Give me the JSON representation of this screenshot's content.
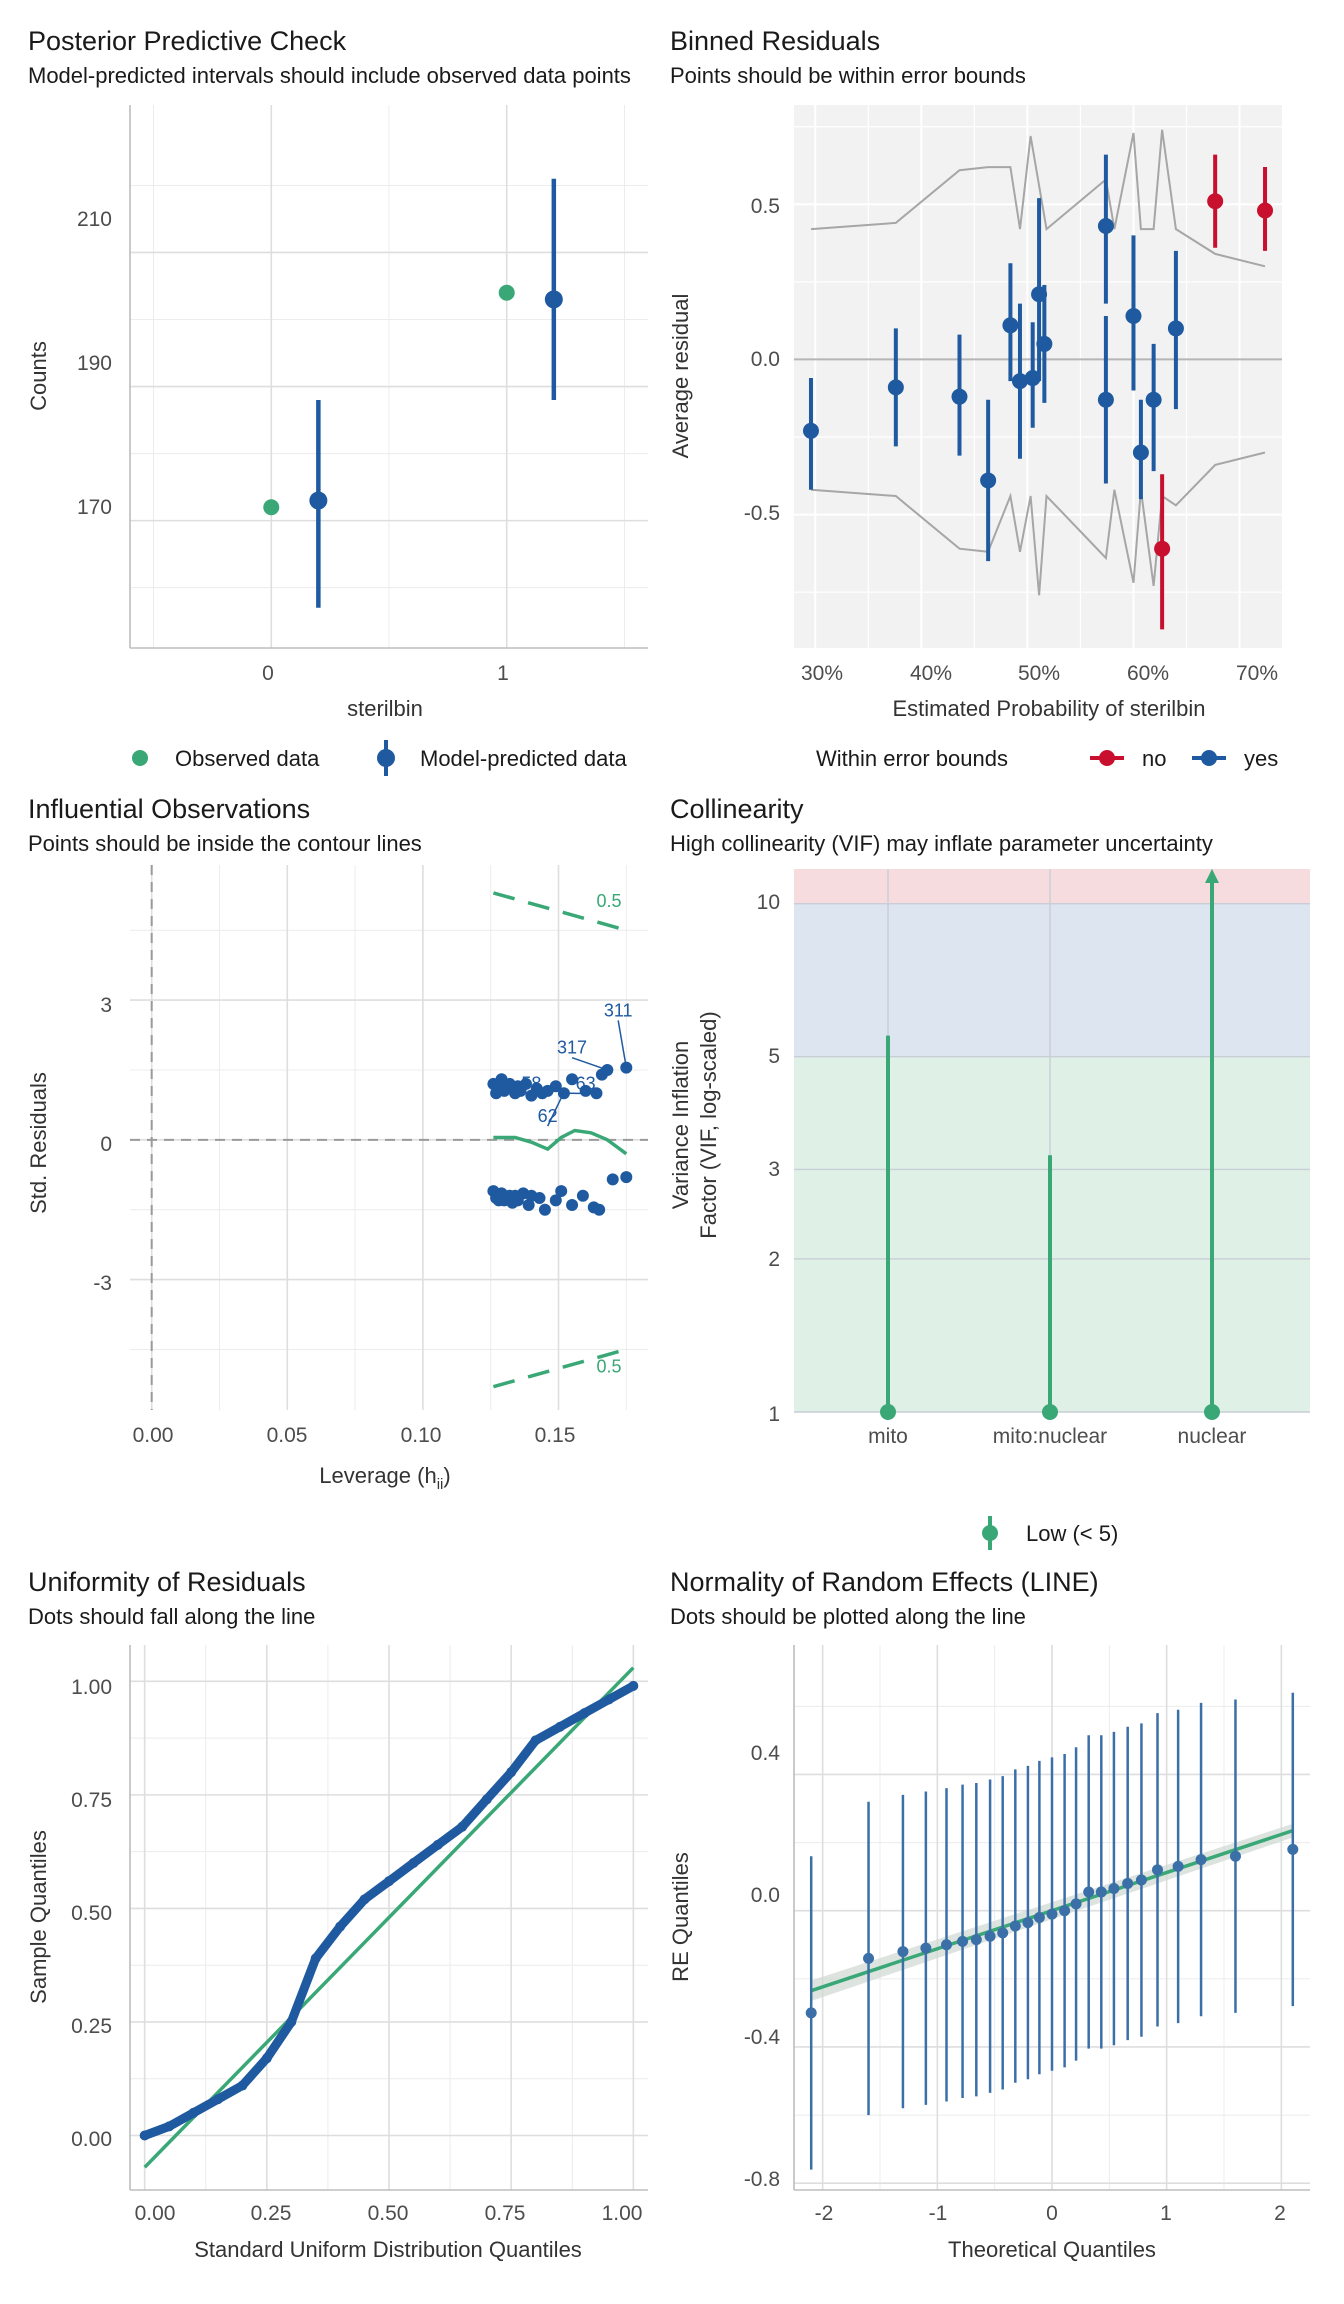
{
  "colors": {
    "green": "#3aa876",
    "blue": "#1f5aa0",
    "red": "#c8102e",
    "grey_band": "#f2f2f2",
    "bound_line": "#a6a6a6"
  },
  "chart_data": [
    {
      "id": "ppc",
      "type": "scatter",
      "title": "Posterior Predictive Check",
      "subtitle": "Model-predicted intervals should include observed data points",
      "xlabel": "sterilbin",
      "ylabel": "Counts",
      "xlim": [
        -0.6,
        1.6
      ],
      "ylim": [
        151,
        232
      ],
      "xticks": [
        0,
        1
      ],
      "xtick_labels": [
        "0",
        "1"
      ],
      "yticks": [
        170,
        190,
        210
      ],
      "ytick_labels": [
        "170",
        "190",
        "210"
      ],
      "observed": [
        {
          "x": 0,
          "y": 172
        },
        {
          "x": 1,
          "y": 204
        }
      ],
      "predicted": [
        {
          "x": 0.2,
          "y": 173,
          "lo": 157,
          "hi": 188
        },
        {
          "x": 1.2,
          "y": 203,
          "lo": 188,
          "hi": 221
        }
      ],
      "legend": [
        "Observed data",
        "Model-predicted data"
      ]
    },
    {
      "id": "binned",
      "type": "scatter",
      "title": "Binned Residuals",
      "subtitle": "Points should be within error bounds",
      "xlabel": "Estimated Probability of sterilbin",
      "ylabel": "Average residual",
      "xlim": [
        0.28,
        0.74
      ],
      "ylim": [
        -0.93,
        0.82
      ],
      "xticks": [
        0.3,
        0.4,
        0.5,
        0.6,
        0.7
      ],
      "xtick_labels": [
        "30%",
        "40%",
        "50%",
        "60%",
        "70%"
      ],
      "yticks": [
        -0.5,
        0.0,
        0.5
      ],
      "ytick_labels": [
        "-0.5",
        "0.0",
        "0.5"
      ],
      "upper_bound": [
        [
          0.296,
          0.42
        ],
        [
          0.376,
          0.44
        ],
        [
          0.436,
          0.61
        ],
        [
          0.463,
          0.62
        ],
        [
          0.484,
          0.62
        ],
        [
          0.493,
          0.42
        ],
        [
          0.503,
          0.72
        ],
        [
          0.511,
          0.56
        ],
        [
          0.518,
          0.42
        ],
        [
          0.574,
          0.58
        ],
        [
          0.582,
          0.42
        ],
        [
          0.6,
          0.73
        ],
        [
          0.607,
          0.42
        ],
        [
          0.619,
          0.42
        ],
        [
          0.627,
          0.74
        ],
        [
          0.64,
          0.42
        ],
        [
          0.677,
          0.34
        ],
        [
          0.724,
          0.3
        ]
      ],
      "lower_bound": [
        [
          0.296,
          -0.42
        ],
        [
          0.376,
          -0.44
        ],
        [
          0.436,
          -0.61
        ],
        [
          0.463,
          -0.62
        ],
        [
          0.484,
          -0.44
        ],
        [
          0.493,
          -0.62
        ],
        [
          0.503,
          -0.44
        ],
        [
          0.511,
          -0.76
        ],
        [
          0.518,
          -0.44
        ],
        [
          0.574,
          -0.64
        ],
        [
          0.582,
          -0.42
        ],
        [
          0.6,
          -0.72
        ],
        [
          0.607,
          -0.42
        ],
        [
          0.619,
          -0.73
        ],
        [
          0.627,
          -0.44
        ],
        [
          0.64,
          -0.47
        ],
        [
          0.677,
          -0.34
        ],
        [
          0.724,
          -0.3
        ]
      ],
      "points": [
        {
          "x": 0.296,
          "y": -0.23,
          "lo": -0.42,
          "hi": -0.06,
          "status": "yes"
        },
        {
          "x": 0.376,
          "y": -0.09,
          "lo": -0.28,
          "hi": 0.1,
          "status": "yes"
        },
        {
          "x": 0.436,
          "y": -0.12,
          "lo": -0.31,
          "hi": 0.08,
          "status": "yes"
        },
        {
          "x": 0.463,
          "y": -0.39,
          "lo": -0.65,
          "hi": -0.13,
          "status": "yes"
        },
        {
          "x": 0.484,
          "y": 0.11,
          "lo": -0.07,
          "hi": 0.31,
          "status": "yes"
        },
        {
          "x": 0.493,
          "y": -0.07,
          "lo": -0.32,
          "hi": 0.18,
          "status": "yes"
        },
        {
          "x": 0.505,
          "y": -0.06,
          "lo": -0.22,
          "hi": 0.12,
          "status": "yes"
        },
        {
          "x": 0.511,
          "y": 0.21,
          "lo": -0.07,
          "hi": 0.52,
          "status": "yes"
        },
        {
          "x": 0.516,
          "y": 0.05,
          "lo": -0.14,
          "hi": 0.24,
          "status": "yes"
        },
        {
          "x": 0.574,
          "y": 0.43,
          "lo": 0.18,
          "hi": 0.66,
          "status": "yes"
        },
        {
          "x": 0.574,
          "y": -0.13,
          "lo": -0.4,
          "hi": 0.14,
          "status": "yes"
        },
        {
          "x": 0.6,
          "y": 0.14,
          "lo": -0.1,
          "hi": 0.4,
          "status": "yes"
        },
        {
          "x": 0.607,
          "y": -0.3,
          "lo": -0.45,
          "hi": -0.13,
          "status": "yes"
        },
        {
          "x": 0.619,
          "y": -0.13,
          "lo": -0.36,
          "hi": 0.05,
          "status": "yes"
        },
        {
          "x": 0.627,
          "y": -0.61,
          "lo": -0.87,
          "hi": -0.37,
          "status": "no"
        },
        {
          "x": 0.64,
          "y": 0.1,
          "lo": -0.16,
          "hi": 0.35,
          "status": "yes"
        },
        {
          "x": 0.677,
          "y": 0.51,
          "lo": 0.36,
          "hi": 0.66,
          "status": "no"
        },
        {
          "x": 0.724,
          "y": 0.48,
          "lo": 0.35,
          "hi": 0.62,
          "status": "no"
        }
      ],
      "legend_title": "Within error bounds",
      "legend": [
        "no",
        "yes"
      ]
    },
    {
      "id": "influential",
      "type": "scatter",
      "title": "Influential Observations",
      "subtitle": "Points should be inside the contour lines",
      "xlabel": "Leverage (h",
      "xlabel_sub": "ii",
      "xlabel_close": ")",
      "ylabel": "Std. Residuals",
      "xlim": [
        -0.008,
        0.183
      ],
      "ylim": [
        -5.8,
        5.9
      ],
      "xticks": [
        0.0,
        0.05,
        0.1,
        0.15
      ],
      "xtick_labels": [
        "0.00",
        "0.05",
        "0.10",
        "0.15"
      ],
      "yticks": [
        -3,
        0,
        3
      ],
      "ytick_labels": [
        "-3",
        "0",
        "3"
      ],
      "contour_label": "0.5",
      "contour_upper": [
        [
          0.126,
          5.3
        ],
        [
          0.175,
          4.5
        ]
      ],
      "contour_lower": [
        [
          0.126,
          -5.3
        ],
        [
          0.175,
          -4.5
        ]
      ],
      "loess": [
        [
          0.126,
          0.05
        ],
        [
          0.134,
          0.05
        ],
        [
          0.14,
          -0.05
        ],
        [
          0.146,
          -0.2
        ],
        [
          0.151,
          0.05
        ],
        [
          0.156,
          0.2
        ],
        [
          0.162,
          0.15
        ],
        [
          0.168,
          0.0
        ],
        [
          0.175,
          -0.3
        ]
      ],
      "points": [
        [
          0.126,
          1.2
        ],
        [
          0.127,
          1.0
        ],
        [
          0.128,
          1.15
        ],
        [
          0.129,
          1.3
        ],
        [
          0.13,
          1.05
        ],
        [
          0.131,
          1.1
        ],
        [
          0.132,
          1.2
        ],
        [
          0.134,
          1.0
        ],
        [
          0.135,
          1.15
        ],
        [
          0.136,
          1.05
        ],
        [
          0.138,
          1.2
        ],
        [
          0.14,
          0.95
        ],
        [
          0.142,
          1.1
        ],
        [
          0.144,
          1.0
        ],
        [
          0.146,
          1.05
        ],
        [
          0.149,
          1.15
        ],
        [
          0.152,
          1.0
        ],
        [
          0.155,
          1.3
        ],
        [
          0.16,
          1.05
        ],
        [
          0.164,
          1.0
        ],
        [
          0.166,
          1.4
        ],
        [
          0.168,
          1.5
        ],
        [
          0.175,
          1.55
        ],
        [
          0.126,
          -1.1
        ],
        [
          0.127,
          -1.25
        ],
        [
          0.128,
          -1.3
        ],
        [
          0.129,
          -1.15
        ],
        [
          0.13,
          -1.3
        ],
        [
          0.132,
          -1.2
        ],
        [
          0.133,
          -1.35
        ],
        [
          0.134,
          -1.2
        ],
        [
          0.135,
          -1.3
        ],
        [
          0.137,
          -1.15
        ],
        [
          0.139,
          -1.4
        ],
        [
          0.14,
          -1.2
        ],
        [
          0.143,
          -1.25
        ],
        [
          0.145,
          -1.5
        ],
        [
          0.149,
          -1.3
        ],
        [
          0.151,
          -1.1
        ],
        [
          0.155,
          -1.4
        ],
        [
          0.159,
          -1.2
        ],
        [
          0.163,
          -1.45
        ],
        [
          0.165,
          -1.5
        ],
        [
          0.17,
          -0.85
        ],
        [
          0.175,
          -0.8
        ]
      ],
      "labels": [
        {
          "text": "311",
          "x": 0.175,
          "y": 1.55,
          "lx": 0.172,
          "ly": 2.65
        },
        {
          "text": "317",
          "x": 0.168,
          "y": 1.5,
          "lx": 0.155,
          "ly": 1.85
        },
        {
          "text": "58",
          "x": 0.139,
          "y": 1.0,
          "lx": 0.14,
          "ly": 1.08
        },
        {
          "text": "63",
          "x": 0.154,
          "y": 1.0,
          "lx": 0.16,
          "ly": 1.08
        },
        {
          "text": "62",
          "x": 0.151,
          "y": 0.9,
          "lx": 0.146,
          "ly": 0.38
        }
      ]
    },
    {
      "id": "vif",
      "type": "scatter",
      "title": "Collinearity",
      "subtitle": "High collinearity (VIF) may inflate parameter uncertainty",
      "xlabel": "",
      "ylabel_line1": "Variance Inflation",
      "ylabel_line2": "Factor (VIF, log-scaled)",
      "ylim": [
        1,
        11.7
      ],
      "yticks": [
        1,
        2,
        3,
        5,
        10
      ],
      "ytick_labels": [
        "1",
        "2",
        "3",
        "5",
        "10"
      ],
      "categories": [
        "mito",
        "mito:nuclear",
        "nuclear"
      ],
      "values": [
        5.5,
        3.2,
        11.7
      ],
      "zones": [
        {
          "from": 1,
          "to": 5,
          "color": "#dff0e6"
        },
        {
          "from": 5,
          "to": 10,
          "color": "#dde5f0"
        },
        {
          "from": 10,
          "to": 11.7,
          "color": "#f6dcdf"
        }
      ],
      "legend": [
        "Low (< 5)"
      ]
    },
    {
      "id": "uniformity",
      "type": "scatter",
      "title": "Uniformity of Residuals",
      "subtitle": "Dots should fall along the line",
      "xlabel": "Standard Uniform Distribution Quantiles",
      "ylabel": "Sample Quantiles",
      "xlim": [
        -0.03,
        1.03
      ],
      "ylim": [
        -0.12,
        1.08
      ],
      "xticks": [
        0.0,
        0.25,
        0.5,
        0.75,
        1.0
      ],
      "xtick_labels": [
        "0.00",
        "0.25",
        "0.50",
        "0.75",
        "1.00"
      ],
      "yticks": [
        0.0,
        0.25,
        0.5,
        0.75,
        1.0
      ],
      "ytick_labels": [
        "0.00",
        "0.25",
        "0.50",
        "0.75",
        "1.00"
      ],
      "reference_line": [
        [
          0.0,
          -0.07
        ],
        [
          1.0,
          1.03
        ]
      ],
      "curve": [
        [
          0.0,
          0.0
        ],
        [
          0.05,
          0.02
        ],
        [
          0.1,
          0.05
        ],
        [
          0.15,
          0.08
        ],
        [
          0.2,
          0.11
        ],
        [
          0.25,
          0.17
        ],
        [
          0.3,
          0.25
        ],
        [
          0.35,
          0.39
        ],
        [
          0.4,
          0.46
        ],
        [
          0.45,
          0.52
        ],
        [
          0.5,
          0.56
        ],
        [
          0.55,
          0.6
        ],
        [
          0.6,
          0.64
        ],
        [
          0.65,
          0.68
        ],
        [
          0.7,
          0.74
        ],
        [
          0.75,
          0.8
        ],
        [
          0.8,
          0.87
        ],
        [
          0.85,
          0.9
        ],
        [
          0.9,
          0.93
        ],
        [
          0.95,
          0.96
        ],
        [
          1.0,
          0.99
        ]
      ]
    },
    {
      "id": "re_normality",
      "type": "scatter",
      "title": "Normality of Random Effects (LINE)",
      "subtitle": "Dots should be plotted along the line",
      "xlabel": "Theoretical Quantiles",
      "ylabel": "RE Quantiles",
      "xlim": [
        -2.25,
        2.25
      ],
      "ylim": [
        -0.82,
        0.78
      ],
      "xticks": [
        -2,
        -1,
        0,
        1,
        2
      ],
      "xtick_labels": [
        "-2",
        "-1",
        "0",
        "1",
        "2"
      ],
      "yticks": [
        -0.8,
        -0.4,
        0.0,
        0.4
      ],
      "ytick_labels": [
        "-0.8",
        "-0.4",
        "0.0",
        "0.4"
      ],
      "fit_line": [
        [
          -2.1,
          -0.235
        ],
        [
          2.1,
          0.235
        ]
      ],
      "points": [
        {
          "x": -2.1,
          "y": -0.3,
          "lo": -0.76,
          "hi": 0.16
        },
        {
          "x": -1.6,
          "y": -0.14,
          "lo": -0.6,
          "hi": 0.32
        },
        {
          "x": -1.3,
          "y": -0.12,
          "lo": -0.58,
          "hi": 0.34
        },
        {
          "x": -1.1,
          "y": -0.11,
          "lo": -0.57,
          "hi": 0.35
        },
        {
          "x": -0.92,
          "y": -0.1,
          "lo": -0.56,
          "hi": 0.36
        },
        {
          "x": -0.78,
          "y": -0.09,
          "lo": -0.55,
          "hi": 0.37
        },
        {
          "x": -0.66,
          "y": -0.085,
          "lo": -0.545,
          "hi": 0.375
        },
        {
          "x": -0.54,
          "y": -0.075,
          "lo": -0.535,
          "hi": 0.385
        },
        {
          "x": -0.43,
          "y": -0.065,
          "lo": -0.525,
          "hi": 0.395
        },
        {
          "x": -0.32,
          "y": -0.045,
          "lo": -0.505,
          "hi": 0.415
        },
        {
          "x": -0.21,
          "y": -0.035,
          "lo": -0.495,
          "hi": 0.425
        },
        {
          "x": -0.11,
          "y": -0.02,
          "lo": -0.48,
          "hi": 0.44
        },
        {
          "x": 0.0,
          "y": -0.01,
          "lo": -0.47,
          "hi": 0.45
        },
        {
          "x": 0.11,
          "y": 0.0,
          "lo": -0.46,
          "hi": 0.46
        },
        {
          "x": 0.21,
          "y": 0.02,
          "lo": -0.44,
          "hi": 0.48
        },
        {
          "x": 0.32,
          "y": 0.055,
          "lo": -0.405,
          "hi": 0.515
        },
        {
          "x": 0.43,
          "y": 0.055,
          "lo": -0.405,
          "hi": 0.515
        },
        {
          "x": 0.54,
          "y": 0.065,
          "lo": -0.395,
          "hi": 0.525
        },
        {
          "x": 0.66,
          "y": 0.08,
          "lo": -0.38,
          "hi": 0.54
        },
        {
          "x": 0.78,
          "y": 0.09,
          "lo": -0.37,
          "hi": 0.55
        },
        {
          "x": 0.92,
          "y": 0.12,
          "lo": -0.34,
          "hi": 0.58
        },
        {
          "x": 1.1,
          "y": 0.13,
          "lo": -0.33,
          "hi": 0.59
        },
        {
          "x": 1.3,
          "y": 0.15,
          "lo": -0.31,
          "hi": 0.61
        },
        {
          "x": 1.6,
          "y": 0.16,
          "lo": -0.3,
          "hi": 0.62
        },
        {
          "x": 2.1,
          "y": 0.18,
          "lo": -0.28,
          "hi": 0.64
        }
      ]
    }
  ]
}
